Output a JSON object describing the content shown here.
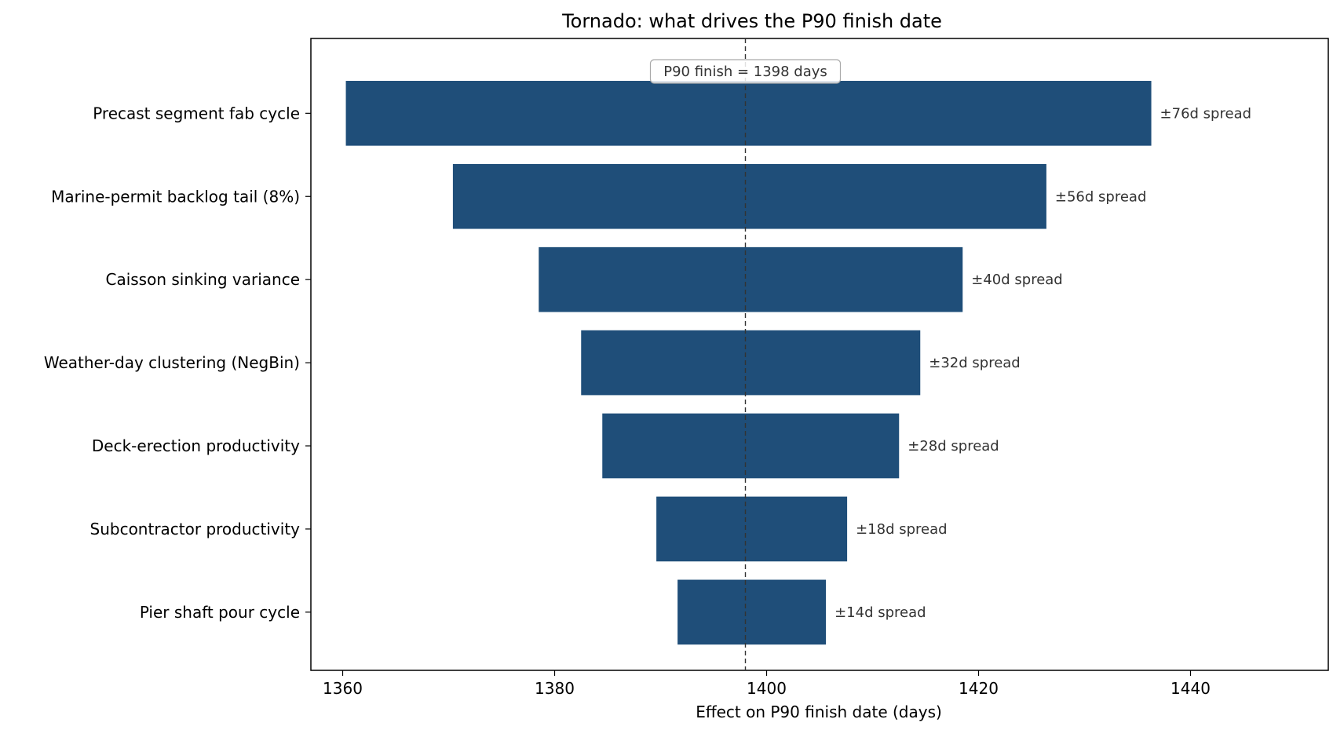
{
  "chart_data": {
    "type": "bar",
    "title": "Tornado: what drives the P90 finish date",
    "xlabel": "Effect on P90 finish date  (days)",
    "ylabel": "",
    "xlim": [
      1357,
      1453
    ],
    "xticks": [
      1360,
      1380,
      1400,
      1420,
      1440
    ],
    "reference": {
      "value": 1398,
      "label": "P90 finish = 1398 days"
    },
    "bar_color": "#1f4e79",
    "categories": [
      "Precast segment fab cycle",
      "Marine-permit backlog tail (8%)",
      "Caisson sinking variance",
      "Weather-day clustering (NegBin)",
      "Deck-erection productivity",
      "Subcontractor productivity",
      "Pier shaft pour cycle"
    ],
    "low": [
      1360.3,
      1370.4,
      1378.5,
      1382.5,
      1384.5,
      1389.6,
      1391.6
    ],
    "high": [
      1436.3,
      1426.4,
      1418.5,
      1414.5,
      1412.5,
      1407.6,
      1405.6
    ],
    "spread_labels": [
      "±76d spread",
      "±56d spread",
      "±40d spread",
      "±32d spread",
      "±28d spread",
      "±18d spread",
      "±14d spread"
    ]
  }
}
